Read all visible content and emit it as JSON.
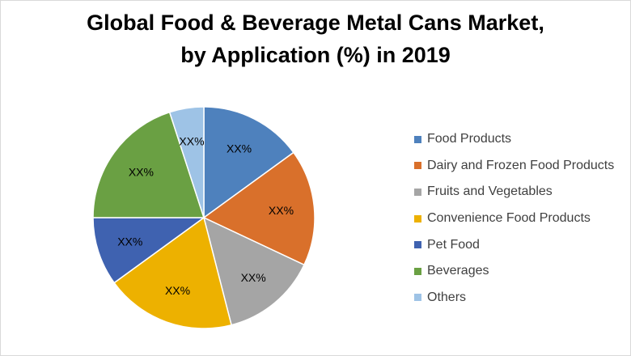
{
  "chart_data": {
    "type": "pie",
    "title_line1": "Global Food & Beverage Metal Cans Market,",
    "title_line2": "by Application (%) in 2019",
    "legend_placement": "right",
    "categories": [
      "Food Products",
      "Dairy and Frozen Food Products",
      "Fruits and Vegetables",
      "Convenience Food Products",
      "Pet Food",
      "Beverages",
      "Others"
    ],
    "values": [
      15,
      17,
      14,
      19,
      10,
      20,
      5
    ],
    "data_labels": [
      "XX%",
      "XX%",
      "XX%",
      "XX%",
      "XX%",
      "XX%",
      "XX%"
    ],
    "colors": [
      "#4e81bd",
      "#d9702b",
      "#a5a5a5",
      "#edb100",
      "#3f62b0",
      "#6aa043",
      "#9ec3e6"
    ]
  }
}
